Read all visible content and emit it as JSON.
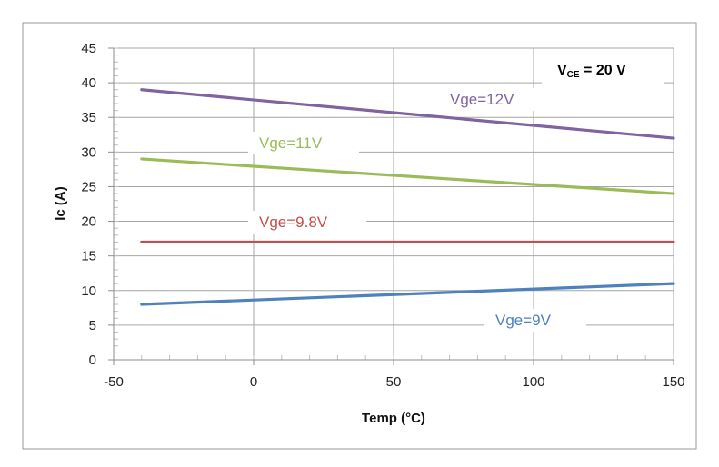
{
  "chart_data": {
    "type": "line",
    "xlabel": "Temp (°C)",
    "ylabel": "Ic (A)",
    "xlim": [
      -50,
      150
    ],
    "ylim": [
      0,
      45
    ],
    "x_ticks": [
      "-50",
      "0",
      "50",
      "100",
      "150"
    ],
    "y_ticks": [
      "0",
      "5",
      "10",
      "15",
      "20",
      "25",
      "30",
      "35",
      "40",
      "45"
    ],
    "grid": true,
    "annotation": {
      "main": "V",
      "sub": "CE",
      "rest": " = 20 V"
    },
    "series": [
      {
        "name": "Vge=12V",
        "color": "#8064a2",
        "x": [
          -40,
          150
        ],
        "y": [
          39,
          32
        ]
      },
      {
        "name": "Vge=11V",
        "color": "#9bbb59",
        "x": [
          -40,
          150
        ],
        "y": [
          29,
          24
        ]
      },
      {
        "name": "Vge=9.8V",
        "color": "#c0504d",
        "x": [
          -40,
          150
        ],
        "y": [
          17,
          17
        ]
      },
      {
        "name": "Vge=9V",
        "color": "#4f81bd",
        "x": [
          -40,
          150
        ],
        "y": [
          8,
          11
        ]
      }
    ]
  }
}
